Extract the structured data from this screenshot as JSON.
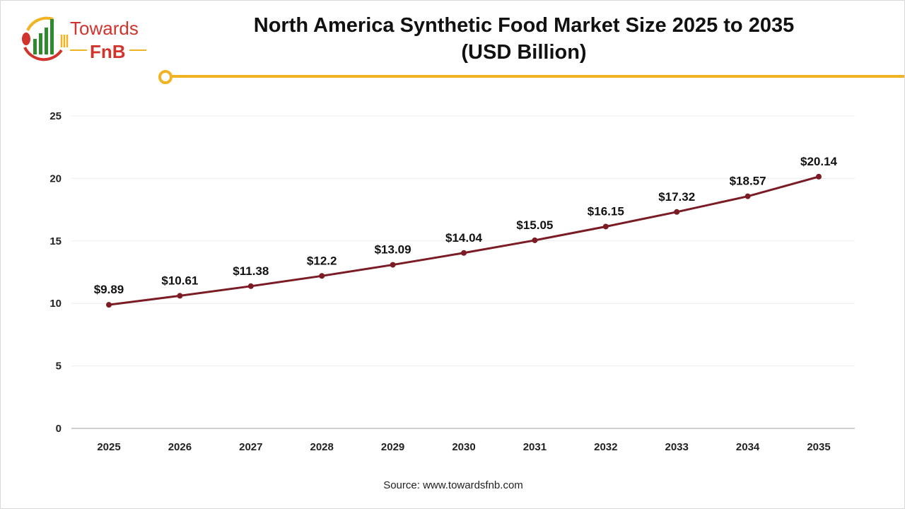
{
  "header": {
    "title_line1": "North America Synthetic Food Market Size 2025 to 2035",
    "title_line2": "(USD Billion)",
    "logo_text": "Towards FnB"
  },
  "source": "Source: www.towardsfnb.com",
  "colors": {
    "line": "#7b1c25",
    "accent": "#f0b323",
    "logo_red": "#d0342c",
    "logo_green": "#2e8b2e"
  },
  "chart_data": {
    "type": "line",
    "title": "North America Synthetic Food Market Size 2025 to 2035 (USD Billion)",
    "categories": [
      "2025",
      "2026",
      "2027",
      "2028",
      "2029",
      "2030",
      "2031",
      "2032",
      "2033",
      "2034",
      "2035"
    ],
    "values": [
      9.89,
      10.61,
      11.38,
      12.2,
      13.09,
      14.04,
      15.05,
      16.15,
      17.32,
      18.57,
      20.14
    ],
    "data_labels": [
      "$9.89",
      "$10.61",
      "$11.38",
      "$12.2",
      "$13.09",
      "$14.04",
      "$15.05",
      "$16.15",
      "$17.32",
      "$18.57",
      "$20.14"
    ],
    "yticks": [
      "0",
      "5",
      "10",
      "15",
      "20",
      "25"
    ],
    "ylim": [
      0,
      25
    ],
    "grid": true,
    "legend": "none",
    "xlabel": "",
    "ylabel": ""
  }
}
